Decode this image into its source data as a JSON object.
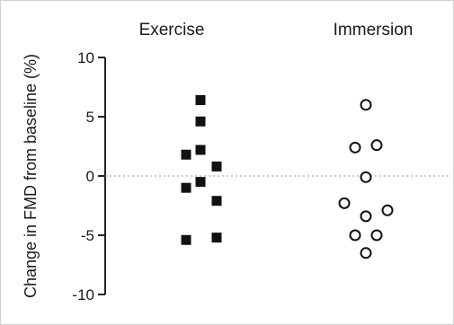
{
  "chart_data": {
    "type": "scatter",
    "title": "",
    "xlabel": "",
    "ylabel": "Change in FMD from baseline (%)",
    "categories": [
      "Exercise",
      "Immersion"
    ],
    "ylim": [
      -10,
      10
    ],
    "yticks": [
      10,
      5,
      0,
      -5,
      -10
    ],
    "ytick_labels": [
      "10",
      "5",
      "0",
      "-5",
      "-10"
    ],
    "reference_line": 0,
    "series": [
      {
        "category": "Exercise",
        "marker": "filled-square",
        "color": "#111111",
        "points": [
          {
            "x": 0.08,
            "y": 6.4
          },
          {
            "x": 0.08,
            "y": 4.6
          },
          {
            "x": 0.08,
            "y": 2.2
          },
          {
            "x": 0.0,
            "y": 1.8
          },
          {
            "x": 0.17,
            "y": 0.8
          },
          {
            "x": 0.08,
            "y": -0.5
          },
          {
            "x": 0.0,
            "y": -1.0
          },
          {
            "x": 0.17,
            "y": -2.1
          },
          {
            "x": 0.0,
            "y": -5.4
          },
          {
            "x": 0.17,
            "y": -5.2
          }
        ]
      },
      {
        "category": "Immersion",
        "marker": "open-circle",
        "color": "#111111",
        "points": [
          {
            "x": 1.0,
            "y": 6.0
          },
          {
            "x": 0.94,
            "y": 2.4
          },
          {
            "x": 1.06,
            "y": 2.6
          },
          {
            "x": 1.0,
            "y": -0.1
          },
          {
            "x": 0.88,
            "y": -2.3
          },
          {
            "x": 1.12,
            "y": -2.9
          },
          {
            "x": 1.0,
            "y": -3.4
          },
          {
            "x": 0.94,
            "y": -5.0
          },
          {
            "x": 1.06,
            "y": -5.0
          },
          {
            "x": 1.0,
            "y": -6.5
          }
        ]
      }
    ],
    "grid": false,
    "legend": "none"
  }
}
